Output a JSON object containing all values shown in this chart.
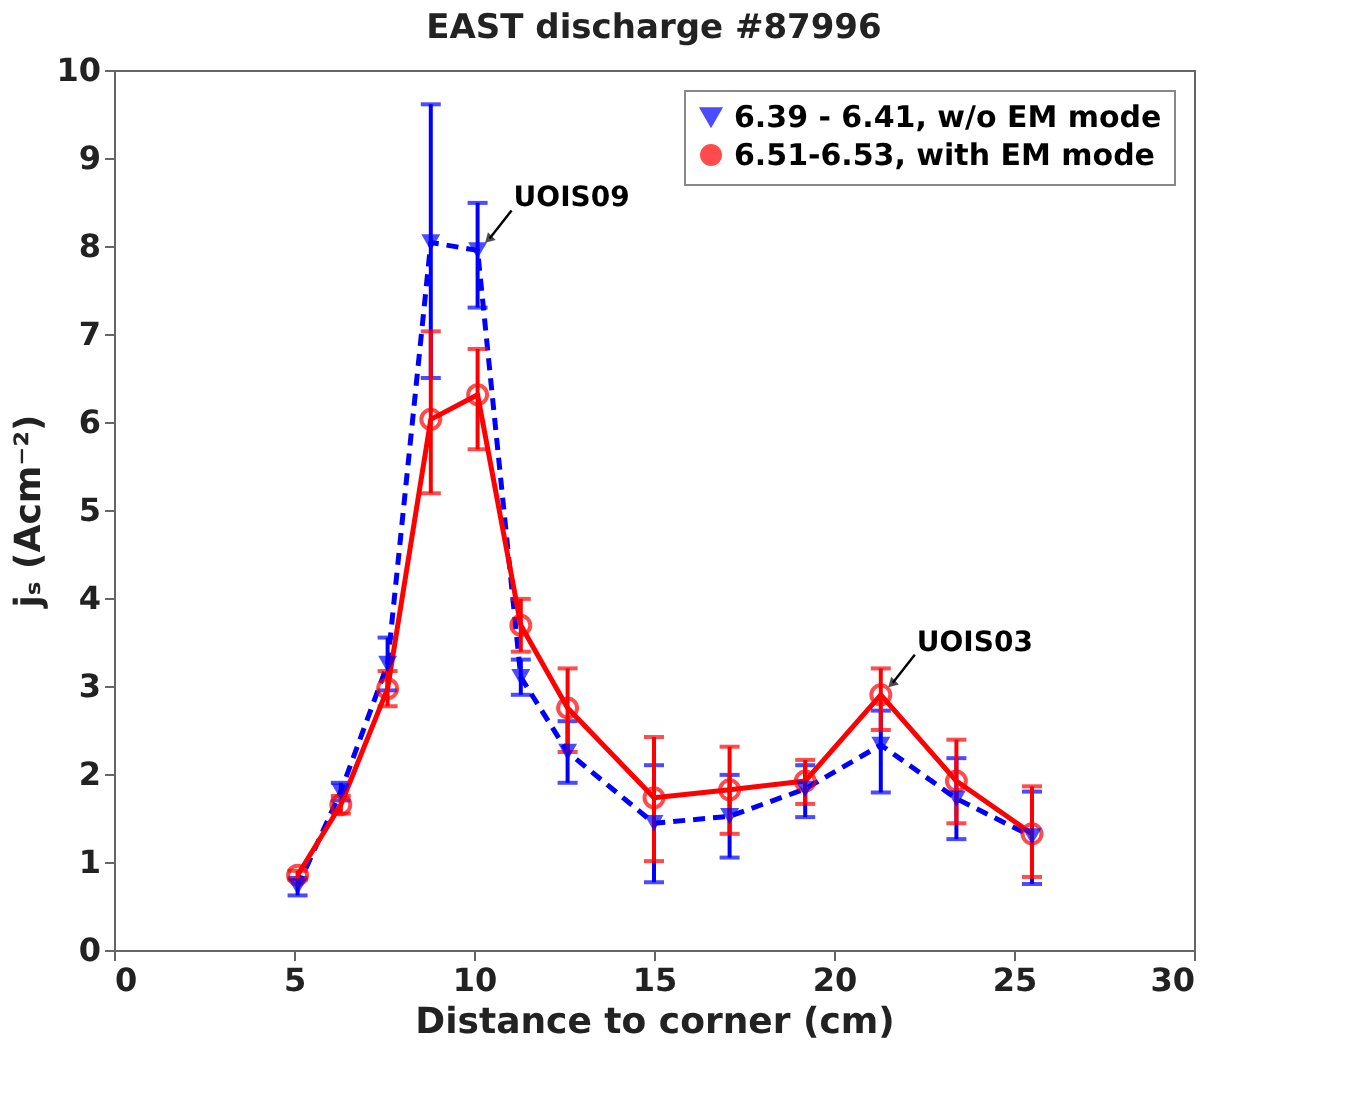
{
  "chart_data": {
    "type": "line",
    "title": "EAST discharge #87996",
    "xlabel": "Distance to corner (cm)",
    "ylabel": "jₛ (Acm⁻²)",
    "x": [
      5.1,
      6.3,
      7.6,
      8.8,
      10.1,
      11.3,
      12.6,
      15.0,
      17.1,
      19.2,
      21.3,
      23.4,
      25.5
    ],
    "series": [
      {
        "name": "6.39 - 6.41, w/o EM mode",
        "color": "#0000ff",
        "line_style": "dashed",
        "marker": "triangle",
        "values": [
          0.72,
          1.8,
          3.25,
          8.04,
          7.95,
          3.1,
          2.25,
          1.44,
          1.52,
          1.83,
          2.33,
          1.72,
          1.29
        ],
        "errors": [
          [
            0.62,
            0.82
          ],
          [
            1.7,
            1.9
          ],
          [
            2.95,
            3.55
          ],
          [
            6.5,
            9.61
          ],
          [
            7.3,
            8.49
          ],
          [
            2.9,
            3.3
          ],
          [
            1.9,
            2.6
          ],
          [
            0.77,
            2.1
          ],
          [
            1.05,
            1.99
          ],
          [
            1.51,
            2.1
          ],
          [
            1.79,
            2.72
          ],
          [
            1.26,
            2.18
          ],
          [
            0.75,
            1.8
          ]
        ]
      },
      {
        "name": "6.51-6.53, with EM mode",
        "color": "#ff0000",
        "line_style": "solid",
        "marker": "circle",
        "values": [
          0.85,
          1.65,
          2.97,
          6.03,
          6.31,
          3.69,
          2.75,
          1.73,
          1.82,
          1.92,
          2.9,
          1.92,
          1.32
        ],
        "errors": [
          [
            0.8,
            0.9
          ],
          [
            1.55,
            1.75
          ],
          [
            2.77,
            3.17
          ],
          [
            5.19,
            7.03
          ],
          [
            5.69,
            6.83
          ],
          [
            3.39,
            3.99
          ],
          [
            2.25,
            3.2
          ],
          [
            1.01,
            2.42
          ],
          [
            1.32,
            2.31
          ],
          [
            1.66,
            2.16
          ],
          [
            2.5,
            3.2
          ],
          [
            1.44,
            2.39
          ],
          [
            0.83,
            1.86
          ]
        ]
      }
    ],
    "annotations": [
      {
        "text": "UOIS09",
        "x": 10.1,
        "y": 7.95
      },
      {
        "text": "UOIS03",
        "x": 21.3,
        "y": 2.9
      }
    ],
    "xlim": [
      0,
      30
    ],
    "xticks": [
      0,
      5,
      10,
      15,
      20,
      25,
      30
    ],
    "ylim": [
      0,
      10
    ],
    "yticks": [
      0,
      1,
      2,
      3,
      4,
      5,
      6,
      7,
      8,
      9,
      10
    ],
    "grid": false,
    "legend": "top right"
  }
}
